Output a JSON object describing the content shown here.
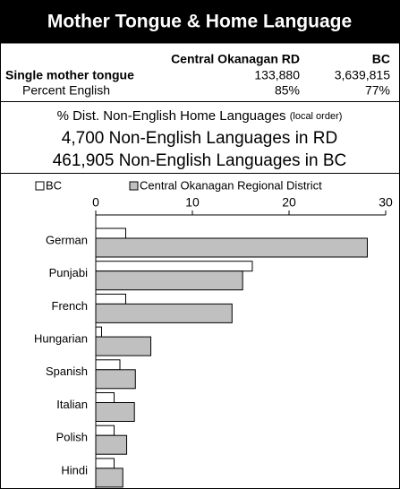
{
  "header": {
    "title": "Mother Tongue & Home Language"
  },
  "table": {
    "columns": [
      "Central Okanagan RD",
      "BC"
    ],
    "rows": [
      {
        "label": "Single mother tongue",
        "cells": [
          "133,880",
          "3,639,815"
        ]
      },
      {
        "label": "Percent English",
        "cells": [
          "85%",
          "77%"
        ]
      }
    ]
  },
  "chart_data": {
    "type": "bar",
    "orientation": "horizontal",
    "title": "% Dist. Non-English Home Languages",
    "subtitle": "(local order)",
    "annotations": [
      "4,700 Non-English Languages in RD",
      "461,905 Non-English Languages in BC"
    ],
    "categories": [
      "German",
      "Punjabi",
      "French",
      "Hungarian",
      "Spanish",
      "Italian",
      "Polish",
      "Hindi"
    ],
    "series": [
      {
        "name": "BC",
        "color": "#ffffff",
        "values": [
          3.1,
          16.2,
          3.1,
          0.6,
          2.5,
          1.9,
          1.9,
          1.9
        ]
      },
      {
        "name": "Central Okanagan Regional District",
        "color": "#c0c0c0",
        "values": [
          28.1,
          15.2,
          14.1,
          5.7,
          4.1,
          4.0,
          3.2,
          2.8
        ]
      }
    ],
    "xlim": [
      0,
      30
    ],
    "xticks": [
      0,
      10,
      20,
      30
    ],
    "legend": "top"
  }
}
